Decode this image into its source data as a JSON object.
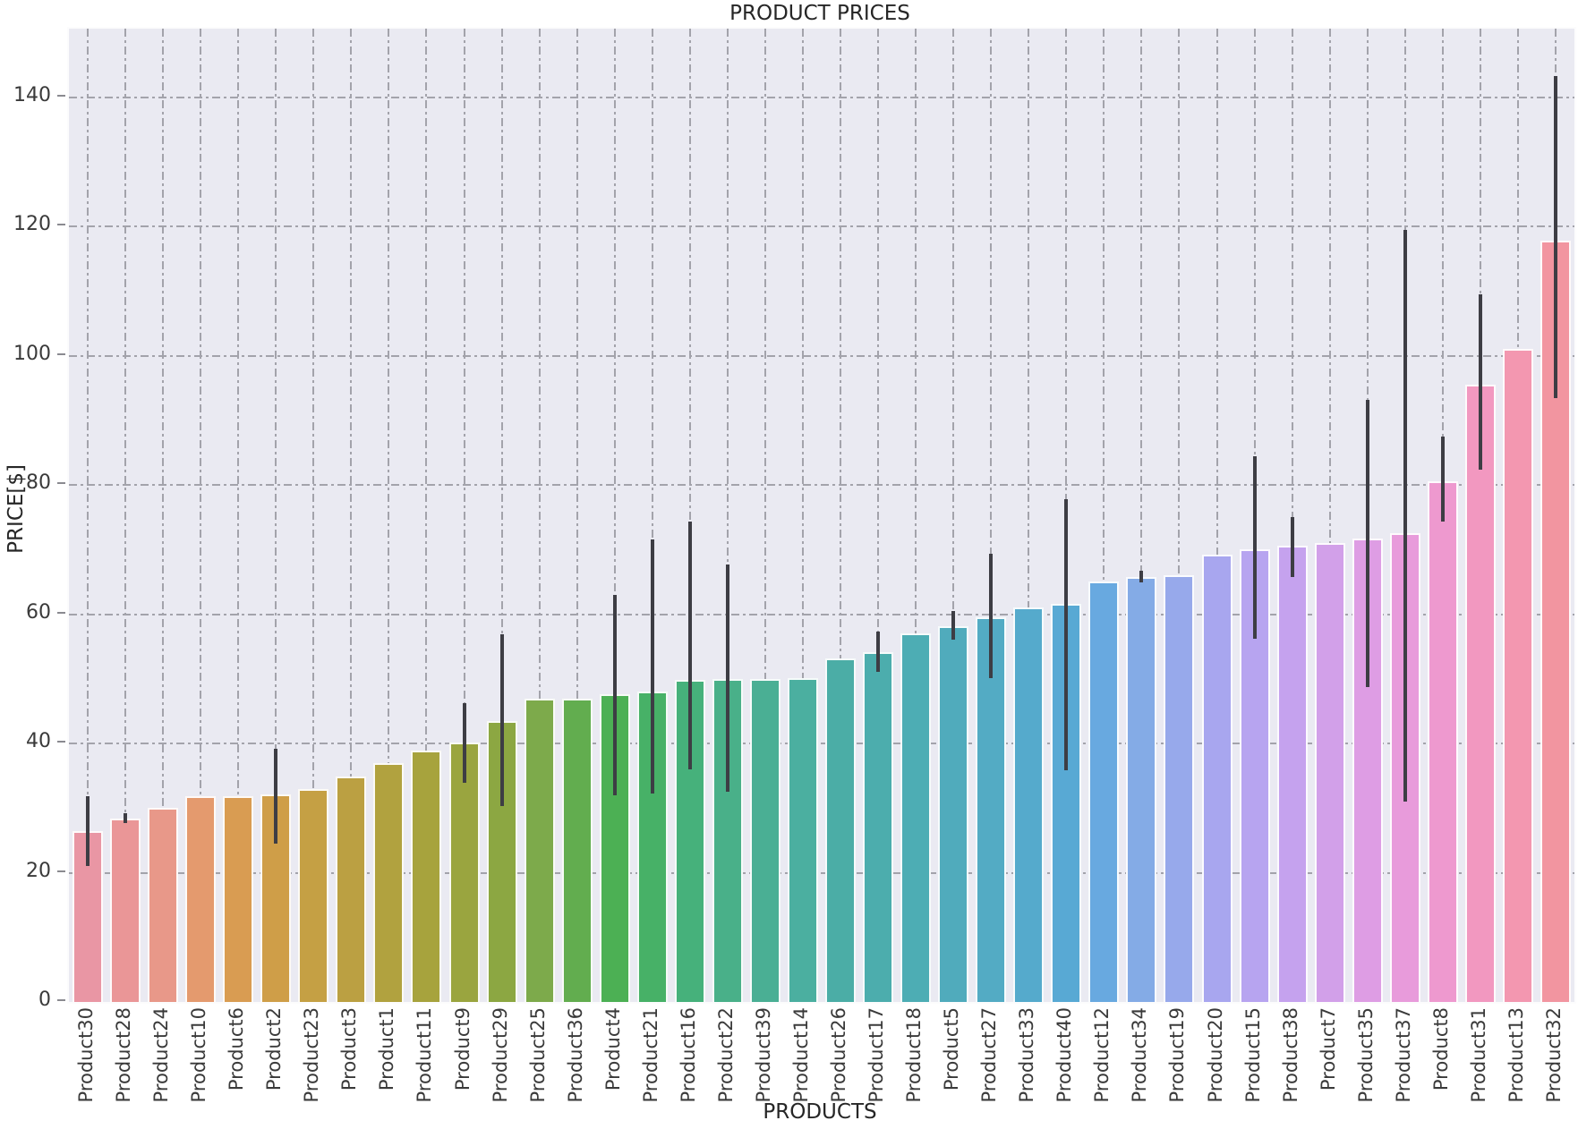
{
  "title": "PRODUCT PRICES",
  "xlabel": "PRODUCTS",
  "ylabel": "PRICE[$]",
  "colors": {
    "figure_bg": "#ffffff",
    "plot_bg": "#eaeaf2",
    "grid": "#a3a3ab",
    "errorbar": "#3d3d44",
    "text": "#2e2e2e"
  },
  "chart_data": {
    "type": "bar",
    "title": "PRODUCT PRICES",
    "xlabel": "PRODUCTS",
    "ylabel": "PRICE[$]",
    "ylim": [
      0,
      150.6
    ],
    "yticks": [
      0,
      20,
      40,
      60,
      80,
      100,
      120,
      140
    ],
    "grid": "both-dash-dot",
    "legend": "none",
    "categories": [
      "Product30",
      "Product28",
      "Product24",
      "Product10",
      "Product6",
      "Product2",
      "Product23",
      "Product3",
      "Product1",
      "Product11",
      "Product9",
      "Product29",
      "Product25",
      "Product36",
      "Product4",
      "Product21",
      "Product16",
      "Product22",
      "Product39",
      "Product14",
      "Product26",
      "Product17",
      "Product18",
      "Product5",
      "Product27",
      "Product33",
      "Product40",
      "Product12",
      "Product34",
      "Product19",
      "Product20",
      "Product15",
      "Product38",
      "Product7",
      "Product35",
      "Product37",
      "Product8",
      "Product31",
      "Product13",
      "Product32"
    ],
    "values": [
      26.5,
      28.4,
      30.0,
      31.8,
      31.9,
      32.1,
      32.9,
      34.9,
      36.9,
      38.9,
      40.1,
      43.4,
      46.9,
      46.9,
      47.6,
      48.1,
      49.8,
      50.0,
      50.0,
      50.1,
      53.1,
      54.1,
      57.1,
      58.1,
      59.5,
      61.1,
      61.6,
      65.1,
      65.7,
      66.0,
      69.2,
      70.1,
      70.6,
      71.0,
      71.7,
      72.6,
      80.5,
      95.5,
      101.0,
      117.8
    ],
    "error_low": [
      21.0,
      27.7,
      null,
      null,
      null,
      24.5,
      null,
      null,
      null,
      null,
      33.9,
      30.3,
      null,
      null,
      32.0,
      32.2,
      36.0,
      32.5,
      null,
      null,
      null,
      51.1,
      null,
      56.1,
      50.1,
      null,
      35.8,
      null,
      64.9,
      null,
      null,
      56.2,
      65.8,
      null,
      48.7,
      31.0,
      74.3,
      82.4,
      null,
      93.5
    ],
    "error_high": [
      31.9,
      29.2,
      null,
      null,
      null,
      39.2,
      null,
      null,
      null,
      null,
      46.2,
      56.9,
      null,
      null,
      63.0,
      71.5,
      74.3,
      67.7,
      null,
      null,
      null,
      57.3,
      null,
      60.5,
      69.3,
      null,
      77.8,
      null,
      66.7,
      null,
      null,
      84.5,
      75.0,
      null,
      93.2,
      119.5,
      87.5,
      109.5,
      null,
      143.2
    ],
    "bar_colors": [
      "#e996a4",
      "#ea9697",
      "#e89889",
      "#e49a6e",
      "#d99c52",
      "#cf9e48",
      "#c5a044",
      "#bba042",
      "#b1a23f",
      "#a7a33d",
      "#9aa53f",
      "#8ca742",
      "#7daa4b",
      "#62ad4f",
      "#4cb054",
      "#47b167",
      "#46b17b",
      "#49b089",
      "#4aaf94",
      "#4bafa0",
      "#4bada6",
      "#4cadad",
      "#4dadb4",
      "#50abbc",
      "#53abc4",
      "#55aacc",
      "#58a9d4",
      "#68a9e0",
      "#84abe6",
      "#97a9eb",
      "#a8a6ef",
      "#b7a4f0",
      "#c5a2ee",
      "#d2a0e9",
      "#de9de4",
      "#e89bdb",
      "#ee99cf",
      "#f298c0",
      "#f397b0",
      "#f295a0"
    ]
  }
}
